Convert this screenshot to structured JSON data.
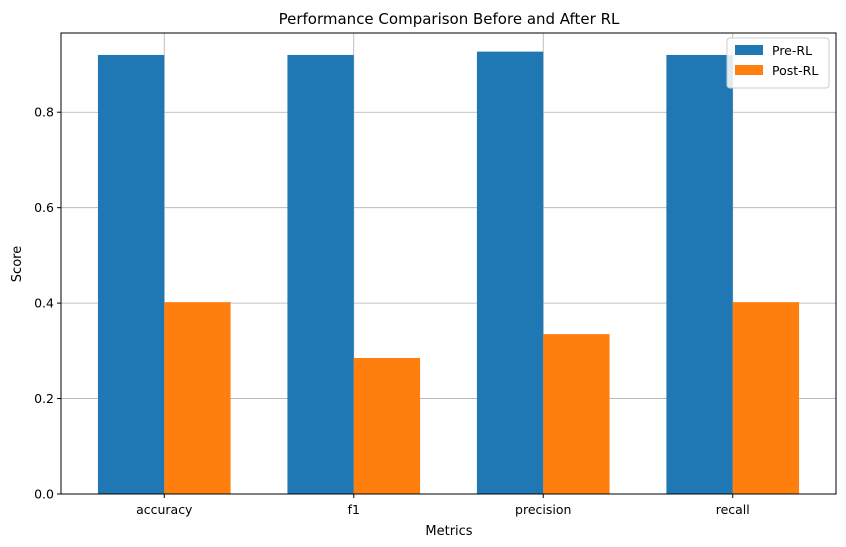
{
  "chart_data": {
    "type": "bar",
    "title": "Performance Comparison Before and After RL",
    "xlabel": "Metrics",
    "ylabel": "Score",
    "categories": [
      "accuracy",
      "f1",
      "precision",
      "recall"
    ],
    "series": [
      {
        "name": "Pre-RL",
        "color": "#1f77b4",
        "values": [
          0.92,
          0.92,
          0.927,
          0.92
        ]
      },
      {
        "name": "Post-RL",
        "color": "#ff7f0e",
        "values": [
          0.402,
          0.285,
          0.335,
          0.402
        ]
      }
    ],
    "ylim": [
      0,
      0.966
    ],
    "yticks": [
      0.0,
      0.2,
      0.4,
      0.6,
      0.8
    ],
    "ytick_labels": [
      "0.0",
      "0.2",
      "0.4",
      "0.6",
      "0.8"
    ],
    "grid": true,
    "legend_position": "top-right"
  }
}
